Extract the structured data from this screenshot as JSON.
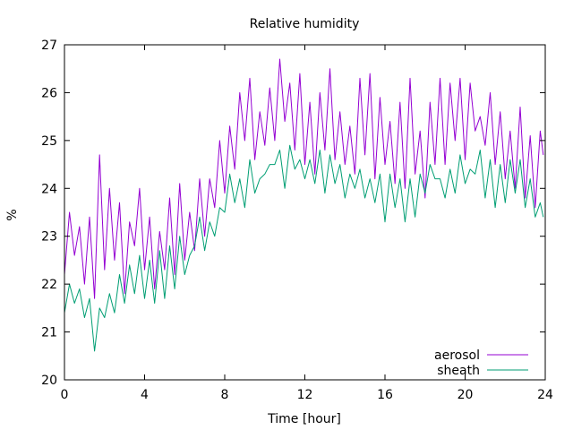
{
  "colors": {
    "background": "#ffffff",
    "axis": "#000000",
    "aerosol": "#9400d3",
    "sheath": "#009e73"
  },
  "chart_data": {
    "type": "line",
    "title": "Relative humidity",
    "xlabel": "Time [hour]",
    "ylabel": "%",
    "xlim": [
      0,
      24
    ],
    "ylim": [
      20,
      27
    ],
    "x_ticks": [
      0,
      4,
      8,
      12,
      16,
      20,
      24
    ],
    "x_tick_labels": [
      "0",
      "4",
      "8",
      "12",
      "16",
      "20",
      "24"
    ],
    "y_ticks": [
      20,
      21,
      22,
      23,
      24,
      25,
      26,
      27
    ],
    "y_tick_labels": [
      "20",
      "21",
      "22",
      "23",
      "24",
      "25",
      "26",
      "27"
    ],
    "grid": false,
    "legend_position": "bottom-right",
    "x": [
      0.0,
      0.25,
      0.5,
      0.75,
      1.0,
      1.25,
      1.5,
      1.75,
      2.0,
      2.25,
      2.5,
      2.75,
      3.0,
      3.25,
      3.5,
      3.75,
      4.0,
      4.25,
      4.5,
      4.75,
      5.0,
      5.25,
      5.5,
      5.75,
      6.0,
      6.25,
      6.5,
      6.75,
      7.0,
      7.25,
      7.5,
      7.75,
      8.0,
      8.25,
      8.5,
      8.75,
      9.0,
      9.25,
      9.5,
      9.75,
      10.0,
      10.25,
      10.5,
      10.75,
      11.0,
      11.25,
      11.5,
      11.75,
      12.0,
      12.25,
      12.5,
      12.75,
      13.0,
      13.25,
      13.5,
      13.75,
      14.0,
      14.25,
      14.5,
      14.75,
      15.0,
      15.25,
      15.5,
      15.75,
      16.0,
      16.25,
      16.5,
      16.75,
      17.0,
      17.25,
      17.5,
      17.75,
      18.0,
      18.25,
      18.5,
      18.75,
      19.0,
      19.25,
      19.5,
      19.75,
      20.0,
      20.25,
      20.5,
      20.75,
      21.0,
      21.25,
      21.5,
      21.75,
      22.0,
      22.25,
      22.5,
      22.75,
      23.0,
      23.25,
      23.5,
      23.75,
      23.9
    ],
    "series": [
      {
        "name": "aerosol",
        "values": [
          22.2,
          23.5,
          22.6,
          23.2,
          22.0,
          23.4,
          21.7,
          24.7,
          22.3,
          24.0,
          22.5,
          23.7,
          21.8,
          23.3,
          22.8,
          24.0,
          22.3,
          23.4,
          21.9,
          23.1,
          22.3,
          23.8,
          22.2,
          24.1,
          22.5,
          23.5,
          22.7,
          24.2,
          23.0,
          24.2,
          23.6,
          25.0,
          23.9,
          25.3,
          24.4,
          26.0,
          25.0,
          26.3,
          24.6,
          25.6,
          24.9,
          26.1,
          25.0,
          26.7,
          25.4,
          26.2,
          24.8,
          26.4,
          24.5,
          25.8,
          24.3,
          26.0,
          24.8,
          26.5,
          24.6,
          25.6,
          24.5,
          25.3,
          24.3,
          26.3,
          24.7,
          26.4,
          24.2,
          25.9,
          24.5,
          25.4,
          24.1,
          25.8,
          24.0,
          26.3,
          24.3,
          25.2,
          23.8,
          25.8,
          24.5,
          26.3,
          24.5,
          26.2,
          25.0,
          26.3,
          24.6,
          26.2,
          25.2,
          25.5,
          24.9,
          26.0,
          24.5,
          25.6,
          24.2,
          25.2,
          24.0,
          25.7,
          23.8,
          25.1,
          23.6,
          25.2,
          24.7
        ]
      },
      {
        "name": "sheath",
        "values": [
          21.4,
          22.0,
          21.6,
          21.9,
          21.3,
          21.7,
          20.6,
          21.5,
          21.3,
          21.8,
          21.4,
          22.2,
          21.6,
          22.4,
          21.8,
          22.6,
          21.7,
          22.5,
          21.6,
          22.7,
          21.7,
          22.8,
          21.9,
          23.0,
          22.2,
          22.6,
          22.8,
          23.4,
          22.7,
          23.3,
          23.0,
          23.6,
          23.5,
          24.3,
          23.7,
          24.2,
          23.6,
          24.6,
          23.9,
          24.2,
          24.3,
          24.5,
          24.5,
          24.8,
          24.0,
          24.9,
          24.4,
          24.6,
          24.2,
          24.6,
          24.1,
          24.8,
          23.9,
          24.7,
          24.1,
          24.5,
          23.8,
          24.3,
          24.0,
          24.4,
          23.8,
          24.2,
          23.7,
          24.3,
          23.3,
          24.3,
          23.6,
          24.2,
          23.3,
          24.2,
          23.4,
          24.3,
          23.9,
          24.5,
          24.2,
          24.2,
          23.8,
          24.4,
          23.9,
          24.7,
          24.1,
          24.4,
          24.3,
          24.8,
          23.8,
          24.6,
          23.6,
          24.5,
          23.7,
          24.6,
          23.9,
          24.6,
          23.6,
          24.2,
          23.4,
          23.7,
          23.4
        ]
      }
    ]
  }
}
